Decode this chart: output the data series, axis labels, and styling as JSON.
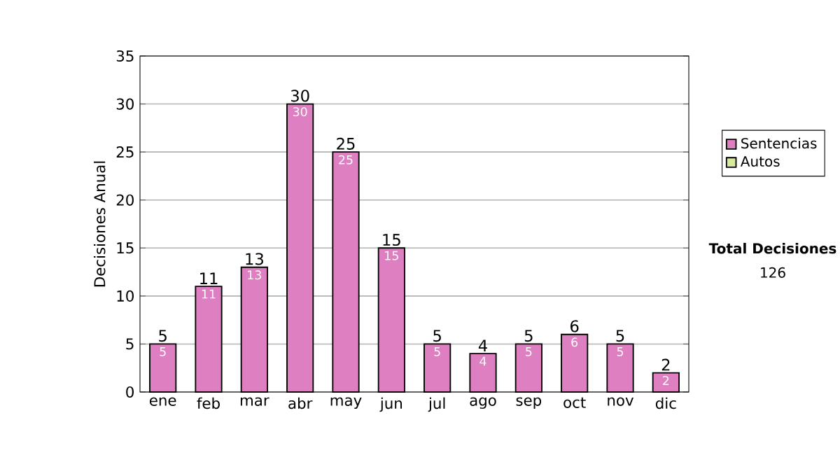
{
  "chart_data": {
    "type": "bar",
    "ylabel": "Decisiones Anual",
    "stacked": true,
    "categories": [
      "ene",
      "feb",
      "mar",
      "abr",
      "may",
      "jun",
      "jul",
      "ago",
      "sep",
      "oct",
      "nov",
      "dic"
    ],
    "series": [
      {
        "name": "Sentencias",
        "color": "#dd7fc0",
        "values": [
          5,
          11,
          13,
          30,
          25,
          15,
          5,
          4,
          5,
          6,
          5,
          2
        ],
        "value_labels": [
          "5",
          "11",
          "13",
          "30",
          "25",
          "15",
          "5",
          "4",
          "5",
          "6",
          "5",
          "2"
        ]
      },
      {
        "name": "Autos",
        "color": "#d8eb9c",
        "values": [
          0,
          0,
          0,
          0,
          0,
          0,
          0,
          0,
          0,
          0,
          0,
          0
        ]
      }
    ],
    "totals": [
      "5",
      "11",
      "13",
      "30",
      "25",
      "15",
      "5",
      "4",
      "5",
      "6",
      "5",
      "2"
    ],
    "ylim": [
      0,
      35
    ],
    "yticks": [
      0,
      5,
      10,
      15,
      20,
      25,
      30,
      35
    ],
    "grid": "y",
    "legend": "right",
    "annotations": [
      "**Total Decisiones**",
      "126"
    ]
  }
}
